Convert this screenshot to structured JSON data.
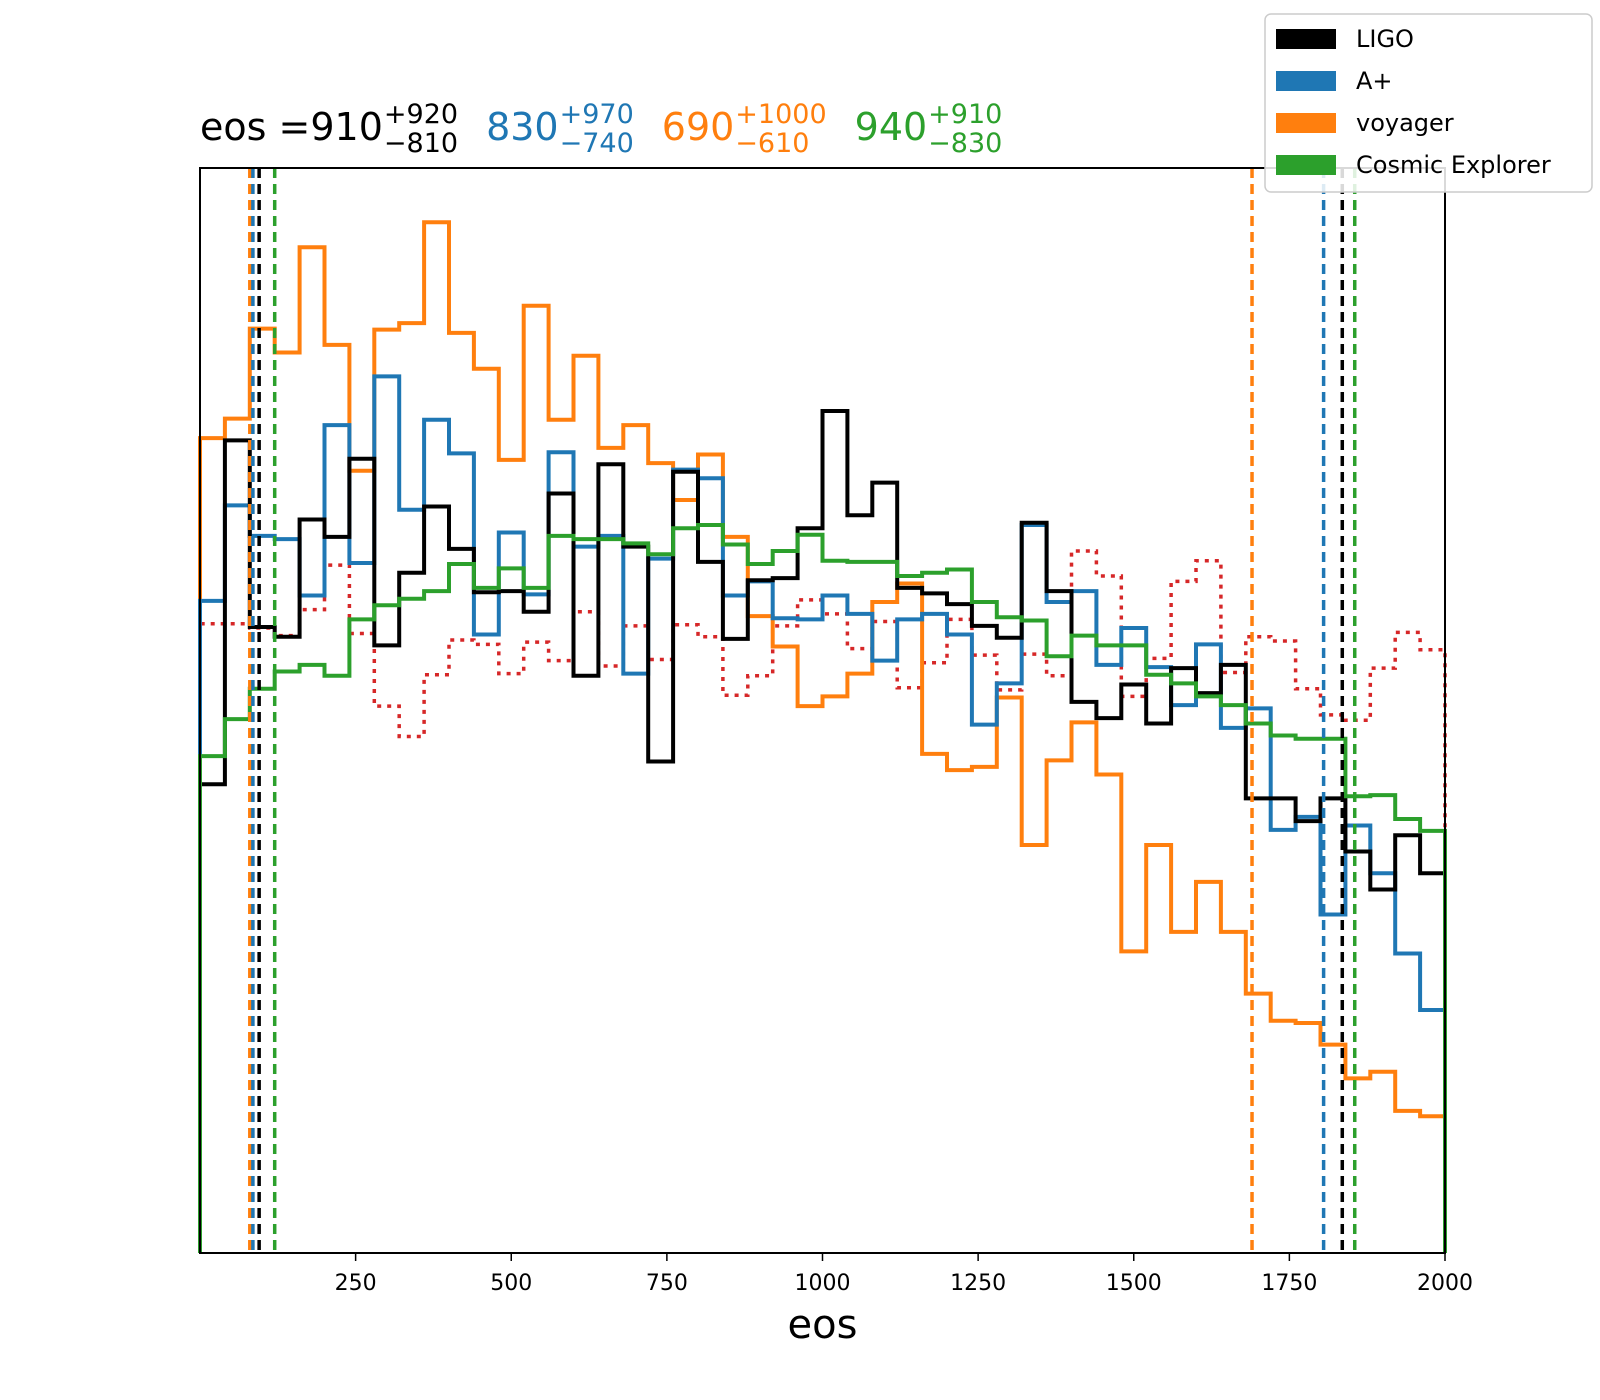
{
  "chart_data": {
    "type": "histogram",
    "xlabel": "eos",
    "xlim": [
      0,
      2000
    ],
    "ylim": [
      0,
      1
    ],
    "y_axis_visible": false,
    "x_ticks": [
      250,
      500,
      750,
      1000,
      1250,
      1500,
      1750,
      2000
    ],
    "x_tick_labels": [
      "250",
      "500",
      "750",
      "1000",
      "1250",
      "1500",
      "1750",
      "2000"
    ],
    "bin_edges": [
      0,
      40,
      80,
      120,
      160,
      200,
      240,
      280,
      320,
      360,
      400,
      440,
      480,
      520,
      560,
      600,
      640,
      680,
      720,
      760,
      800,
      840,
      880,
      920,
      960,
      1000,
      1040,
      1080,
      1120,
      1160,
      1200,
      1240,
      1280,
      1320,
      1360,
      1400,
      1440,
      1480,
      1520,
      1560,
      1600,
      1640,
      1680,
      1720,
      1760,
      1800,
      1840,
      1880,
      1920,
      1960,
      2000
    ],
    "title": {
      "prefix": "eos = ",
      "entries": [
        {
          "value": "910",
          "plus": "+920",
          "minus": "−810",
          "color": "#000000"
        },
        {
          "value": "830",
          "plus": "+970",
          "minus": "−740",
          "color": "#1f77b4"
        },
        {
          "value": "690",
          "plus": "+1000",
          "minus": "−610",
          "color": "#ff7f0e"
        },
        {
          "value": "940",
          "plus": "+910",
          "minus": "−830",
          "color": "#2ca02c"
        }
      ]
    },
    "legend": {
      "placement": "top-right",
      "entries": [
        {
          "label": "LIGO",
          "color": "#000000"
        },
        {
          "label": "A+",
          "color": "#1f77b4"
        },
        {
          "label": "voyager",
          "color": "#ff7f0e"
        },
        {
          "label": "Cosmic Explorer",
          "color": "#2ca02c"
        }
      ]
    },
    "series": [
      {
        "name": "LIGO",
        "color": "#000000",
        "style": "solid",
        "values": [
          0.432,
          0.749,
          0.577,
          0.568,
          0.676,
          0.66,
          0.732,
          0.56,
          0.627,
          0.688,
          0.649,
          0.609,
          0.61,
          0.591,
          0.7,
          0.532,
          0.727,
          0.651,
          0.453,
          0.72,
          0.637,
          0.566,
          0.62,
          0.622,
          0.668,
          0.776,
          0.68,
          0.71,
          0.613,
          0.608,
          0.598,
          0.578,
          0.567,
          0.673,
          0.61,
          0.508,
          0.493,
          0.524,
          0.488,
          0.539,
          0.516,
          0.542,
          0.419,
          0.419,
          0.398,
          0.419,
          0.37,
          0.335,
          0.385,
          0.35,
          0.29
        ],
        "median_ci": [
          95,
          1835
        ]
      },
      {
        "name": "A+",
        "color": "#1f77b4",
        "style": "solid",
        "values": [
          0.601,
          0.689,
          0.661,
          0.658,
          0.606,
          0.763,
          0.636,
          0.808,
          0.685,
          0.768,
          0.737,
          0.57,
          0.664,
          0.607,
          0.738,
          0.651,
          0.661,
          0.534,
          0.64,
          0.722,
          0.714,
          0.606,
          0.619,
          0.585,
          0.584,
          0.606,
          0.589,
          0.546,
          0.584,
          0.589,
          0.57,
          0.487,
          0.525,
          0.671,
          0.6,
          0.61,
          0.542,
          0.576,
          0.54,
          0.505,
          0.561,
          0.484,
          0.502,
          0.39,
          0.402,
          0.312,
          0.394,
          0.35,
          0.276,
          0.224,
          0.314
        ],
        "median_ci": [
          85,
          1805
        ]
      },
      {
        "name": "voyager",
        "color": "#ff7f0e",
        "style": "solid",
        "values": [
          0.751,
          0.769,
          0.852,
          0.83,
          0.927,
          0.837,
          0.721,
          0.851,
          0.857,
          0.95,
          0.848,
          0.815,
          0.731,
          0.873,
          0.768,
          0.827,
          0.742,
          0.763,
          0.728,
          0.694,
          0.736,
          0.66,
          0.587,
          0.559,
          0.504,
          0.513,
          0.534,
          0.6,
          0.617,
          0.46,
          0.445,
          0.448,
          0.512,
          0.376,
          0.454,
          0.489,
          0.441,
          0.278,
          0.376,
          0.296,
          0.342,
          0.296,
          0.239,
          0.214,
          0.212,
          0.192,
          0.161,
          0.167,
          0.131,
          0.126,
          0.12
        ],
        "median_ci": [
          80,
          1690
        ]
      },
      {
        "name": "Cosmic Explorer",
        "color": "#2ca02c",
        "style": "solid",
        "values": [
          0.458,
          0.492,
          0.52,
          0.536,
          0.542,
          0.532,
          0.584,
          0.597,
          0.603,
          0.61,
          0.635,
          0.613,
          0.631,
          0.613,
          0.661,
          0.658,
          0.658,
          0.654,
          0.644,
          0.668,
          0.671,
          0.653,
          0.635,
          0.647,
          0.662,
          0.638,
          0.637,
          0.637,
          0.624,
          0.627,
          0.63,
          0.6,
          0.586,
          0.583,
          0.55,
          0.569,
          0.56,
          0.56,
          0.533,
          0.525,
          0.513,
          0.505,
          0.488,
          0.477,
          0.474,
          0.474,
          0.421,
          0.422,
          0.4,
          0.389,
          0.389
        ],
        "median_ci": [
          120,
          1855
        ]
      },
      {
        "name": "",
        "color": "#d62728",
        "style": "dotted",
        "values": [
          0.58,
          0.58,
          0.576,
          0.569,
          0.593,
          0.634,
          0.571,
          0.504,
          0.476,
          0.533,
          0.565,
          0.561,
          0.534,
          0.563,
          0.546,
          0.591,
          0.541,
          0.578,
          0.547,
          0.579,
          0.568,
          0.514,
          0.532,
          0.578,
          0.602,
          0.589,
          0.557,
          0.582,
          0.521,
          0.544,
          0.584,
          0.551,
          0.519,
          0.552,
          0.532,
          0.647,
          0.624,
          0.513,
          0.548,
          0.619,
          0.638,
          0.535,
          0.568,
          0.564,
          0.52,
          0.496,
          0.491,
          0.539,
          0.572,
          0.556,
          0.556
        ]
      }
    ]
  }
}
